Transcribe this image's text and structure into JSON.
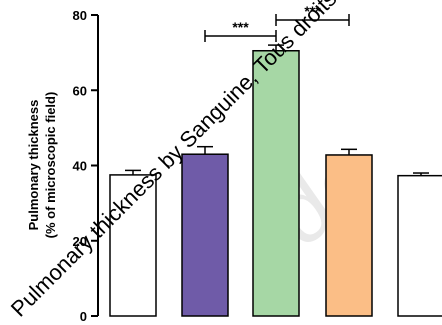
{
  "chart_data": {
    "type": "bar",
    "ylabel_line1": "Pulmonary thickness",
    "ylabel_line2": "(% of microscopic field)",
    "ylim": [
      0,
      80
    ],
    "yticks": [
      "0",
      "20",
      "40",
      "60",
      "80"
    ],
    "grid": false,
    "bars": [
      {
        "value": 37.5,
        "error": 1.2,
        "color": "#ffffff"
      },
      {
        "value": 43.0,
        "error": 2.0,
        "color": "#6f5ba8"
      },
      {
        "value": 70.5,
        "error": 1.5,
        "color": "#a6d7a5"
      },
      {
        "value": 42.8,
        "error": 1.5,
        "color": "#fbbe86"
      },
      {
        "value": 37.3,
        "error": 0.7,
        "color": "#ffffff"
      }
    ],
    "significance": [
      {
        "from": 1,
        "to": 2,
        "label": "***"
      },
      {
        "from": 2,
        "to": 3,
        "label": "***"
      }
    ]
  },
  "watermark": {
    "text": "Pulmonary thickness by Sanguine, Tous droits réservés"
  }
}
